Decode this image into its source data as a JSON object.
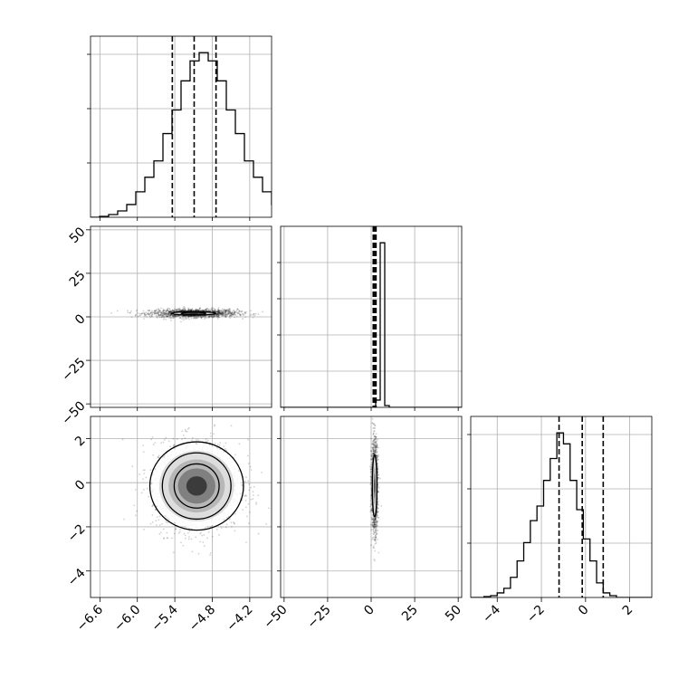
{
  "chart_data": {
    "type": "corner",
    "colors": {
      "ink": "#000000",
      "grid": "#b0b0b0",
      "background": "#ffffff"
    },
    "grid": true,
    "parameters": [
      {
        "index": 0,
        "range": [
          -6.75,
          -3.85
        ],
        "ticks": [
          -6.6,
          -6.0,
          -5.4,
          -4.8,
          -4.2
        ],
        "tick_labels": [
          "−6.6",
          "−6.0",
          "−5.4",
          "−4.8",
          "−4.2"
        ],
        "quantiles": [
          -5.44,
          -5.09,
          -4.74
        ],
        "histogram": {
          "edges_start": -6.75,
          "bin_width": 0.145,
          "counts": [
            0,
            1,
            3,
            7,
            14,
            28,
            44,
            62,
            92,
            118,
            150,
            172,
            181,
            172,
            150,
            118,
            92,
            62,
            44,
            28,
            14,
            7,
            3,
            1,
            0,
            0
          ]
        }
      },
      {
        "index": 1,
        "range": [
          -52,
          52
        ],
        "ticks": [
          -50,
          -25,
          0,
          25,
          50
        ],
        "tick_labels": [
          "−50",
          "−25",
          "0",
          "25",
          "50"
        ],
        "quantiles": [
          1.2,
          2.0,
          2.8
        ],
        "histogram": {
          "edges_start": -52,
          "bin_width": 2.6,
          "counts": [
            0,
            0,
            0,
            0,
            0,
            0,
            0,
            0,
            0,
            0,
            0,
            0,
            0,
            0,
            0,
            0,
            0,
            0,
            0,
            0,
            0,
            8,
            180,
            2,
            0,
            0,
            0,
            0,
            0,
            0,
            0,
            0,
            0,
            0,
            0,
            0,
            0,
            0,
            0,
            0
          ]
        }
      },
      {
        "index": 2,
        "range": [
          -5.2,
          3.0
        ],
        "ticks": [
          -4,
          -2,
          0,
          2
        ],
        "tick_labels": [
          "−4",
          "−2",
          "0",
          "2"
        ],
        "quantiles": [
          -1.2,
          -0.15,
          0.8
        ],
        "histogram": {
          "edges_start": -5.2,
          "bin_width": 0.3,
          "counts": [
            0,
            0,
            1,
            2,
            5,
            10,
            22,
            40,
            60,
            84,
            100,
            128,
            152,
            180,
            168,
            128,
            96,
            64,
            40,
            16,
            5,
            2,
            0,
            0,
            0,
            0,
            0,
            0
          ]
        }
      }
    ],
    "pairs": [
      {
        "x": 0,
        "y": 1,
        "center": [
          -5.1,
          2.0
        ],
        "spread": [
          0.35,
          1.2
        ],
        "contours": [
          {
            "rx": 0.35,
            "ry": 1.0
          },
          {
            "rx": 0.2,
            "ry": 0.6
          }
        ]
      },
      {
        "x": 0,
        "y": 2,
        "center": [
          -5.05,
          -0.15
        ],
        "spread": [
          0.35,
          1.0
        ],
        "contours": [
          {
            "rx": 0.75,
            "ry": 2.0
          },
          {
            "rx": 0.55,
            "ry": 1.5
          },
          {
            "rx": 0.36,
            "ry": 1.0
          }
        ]
      },
      {
        "x": 1,
        "y": 2,
        "center": [
          2.0,
          -0.15
        ],
        "spread": [
          0.9,
          1.0
        ],
        "contours": [
          {
            "rx": 1.3,
            "ry": 1.4
          }
        ]
      }
    ]
  }
}
